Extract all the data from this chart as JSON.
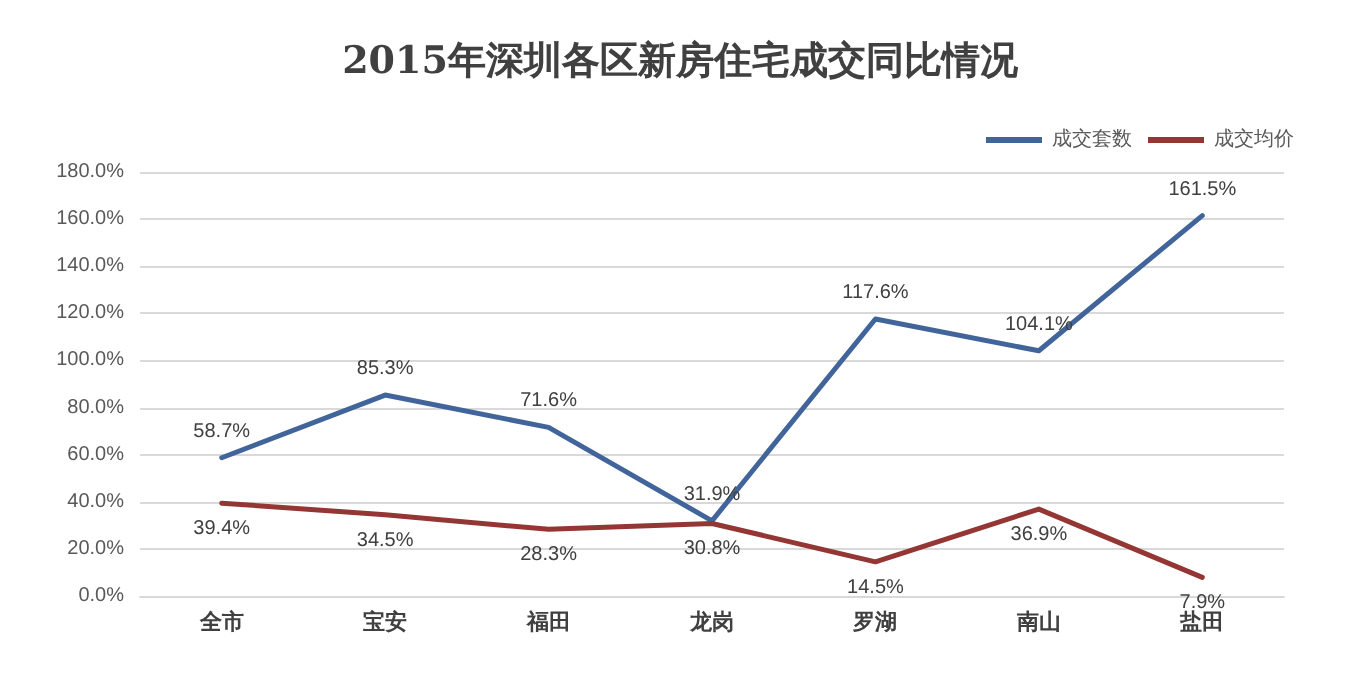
{
  "chart_data": {
    "type": "line",
    "title": "2015年深圳各区新房住宅成交同比情况",
    "categories": [
      "全市",
      "宝安",
      "福田",
      "龙岗",
      "罗湖",
      "南山",
      "盐田"
    ],
    "series": [
      {
        "name": "成交套数",
        "color": "#41659a",
        "values": [
          58.7,
          85.3,
          71.6,
          31.9,
          117.6,
          104.1,
          161.5
        ],
        "value_labels": [
          "58.7%",
          "85.3%",
          "71.6%",
          "31.9%",
          "117.6%",
          "104.1%",
          "161.5%"
        ]
      },
      {
        "name": "成交均价",
        "color": "#943634",
        "values": [
          39.4,
          34.5,
          28.3,
          30.8,
          14.5,
          36.9,
          7.9
        ],
        "value_labels": [
          "39.4%",
          "34.5%",
          "28.3%",
          "30.8%",
          "14.5%",
          "36.9%",
          "7.9%"
        ]
      }
    ],
    "ylim": [
      0,
      180
    ],
    "yticks": [
      {
        "value": 0,
        "label": "0.0%"
      },
      {
        "value": 20,
        "label": "20.0%"
      },
      {
        "value": 40,
        "label": "40.0%"
      },
      {
        "value": 60,
        "label": "60.0%"
      },
      {
        "value": 80,
        "label": "80.0%"
      },
      {
        "value": 100,
        "label": "100.0%"
      },
      {
        "value": 120,
        "label": "120.0%"
      },
      {
        "value": 140,
        "label": "140.0%"
      },
      {
        "value": 160,
        "label": "160.0%"
      },
      {
        "value": 180,
        "label": "180.0%"
      }
    ],
    "grid": "y",
    "legend": "top right",
    "marker": "none",
    "line_style": "solid"
  }
}
